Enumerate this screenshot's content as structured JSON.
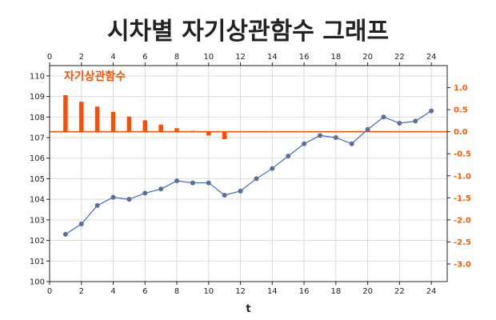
{
  "chart_data": {
    "title": "시차별 자기상관함수 그래프",
    "annotation": "자기상관함수",
    "xlabel": "t",
    "x_ticks": [
      0,
      2,
      4,
      6,
      8,
      10,
      12,
      14,
      16,
      18,
      20,
      22,
      24
    ],
    "top_ticks": [
      0,
      2,
      4,
      6,
      8,
      10,
      12,
      14,
      16,
      18,
      20,
      22,
      24
    ],
    "xlim": [
      0,
      25
    ],
    "left_axis": {
      "ylim": [
        100,
        110.5
      ],
      "ticks": [
        100,
        101,
        102,
        103,
        104,
        105,
        106,
        107,
        108,
        109,
        110
      ]
    },
    "right_axis": {
      "ylim": [
        -3.4,
        1.5
      ],
      "ticks": [
        1.0,
        0.5,
        0.0,
        -0.5,
        -1.0,
        -1.5,
        -2.0,
        -2.5,
        -3.0
      ],
      "tick_labels": [
        "1.0",
        "0.5",
        "0.0",
        "-0.5",
        "-1.0",
        "-1.5",
        "-2.0",
        "-2.5",
        "-3.0"
      ]
    },
    "line_series": {
      "type": "line",
      "color": "#3a6bc4",
      "x": [
        1,
        2,
        3,
        4,
        5,
        6,
        7,
        8,
        9,
        10,
        11,
        12,
        13,
        14,
        15,
        16,
        17,
        18,
        19,
        20,
        21,
        22,
        23,
        24
      ],
      "y": [
        102.3,
        102.8,
        103.7,
        104.1,
        104.0,
        104.3,
        104.5,
        104.9,
        104.8,
        104.8,
        104.2,
        104.4,
        105.0,
        105.5,
        106.1,
        106.7,
        107.1,
        107.0,
        106.7,
        107.4,
        108.0,
        107.7,
        107.8,
        108.3
      ]
    },
    "bar_series": {
      "type": "bar",
      "axis": "right",
      "color": "#ff4d00",
      "x": [
        1,
        2,
        3,
        4,
        5,
        6,
        7,
        8,
        9,
        10,
        11
      ],
      "values": [
        0.83,
        0.68,
        0.57,
        0.45,
        0.34,
        0.26,
        0.16,
        0.08,
        0.02,
        -0.08,
        -0.17
      ]
    },
    "grid": true
  }
}
